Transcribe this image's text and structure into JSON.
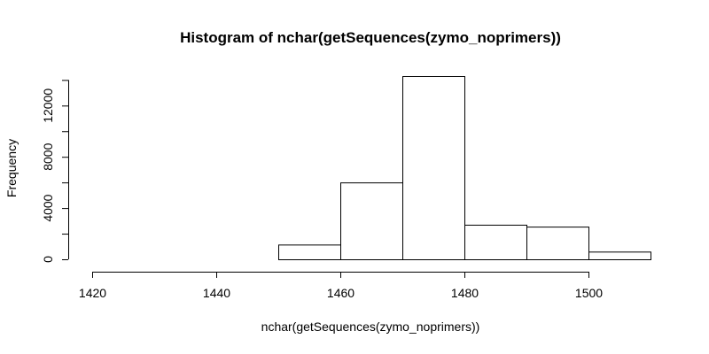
{
  "chart_data": {
    "type": "bar",
    "title": "Histogram of nchar(getSequences(zymo_noprimers))",
    "xlabel": "nchar(getSequences(zymo_noprimers))",
    "ylabel": "Frequency",
    "bins": [
      {
        "start": 1420,
        "end": 1430,
        "count": 0
      },
      {
        "start": 1430,
        "end": 1440,
        "count": 0
      },
      {
        "start": 1440,
        "end": 1450,
        "count": 0
      },
      {
        "start": 1450,
        "end": 1460,
        "count": 1150
      },
      {
        "start": 1460,
        "end": 1470,
        "count": 6000
      },
      {
        "start": 1470,
        "end": 1480,
        "count": 14300
      },
      {
        "start": 1480,
        "end": 1490,
        "count": 2700
      },
      {
        "start": 1490,
        "end": 1500,
        "count": 2550
      },
      {
        "start": 1500,
        "end": 1510,
        "count": 600
      }
    ],
    "xlim": [
      1420,
      1510
    ],
    "ylim": [
      0,
      14300
    ],
    "x_ticks": [
      1420,
      1440,
      1460,
      1480,
      1500
    ],
    "y_ticks": [
      0,
      4000,
      8000,
      12000
    ],
    "y_minor_ticks": [
      2000,
      6000,
      10000,
      14000
    ],
    "grid": false,
    "bar_fill": "#ffffff",
    "bar_stroke": "#000000"
  }
}
